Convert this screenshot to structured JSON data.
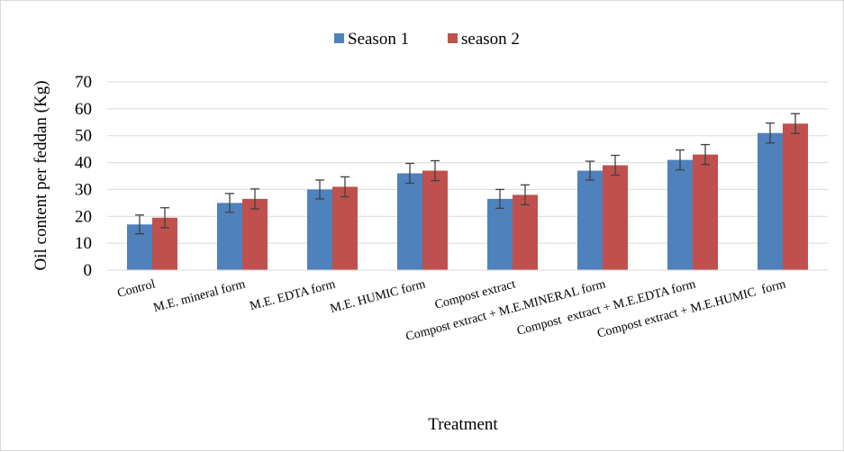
{
  "chart_data": {
    "type": "bar",
    "title": "",
    "xlabel": "Treatment",
    "ylabel": "Oil content per feddan (Kg)",
    "ylim": [
      0,
      70
    ],
    "yticks": [
      0,
      10,
      20,
      30,
      40,
      50,
      60,
      70
    ],
    "grid": true,
    "legend_position": "top",
    "categories": [
      "Control",
      "M.E. mineral form",
      "M.E. EDTA form",
      "M.E. HUMIC form",
      "Compost extract",
      "Compost extract + M.E.MINERAL form",
      "Compost  extract + M.E.EDTA form",
      "Compost extract + M.E.HUMIC  form"
    ],
    "series": [
      {
        "name": "Season 1",
        "color": "#4f81bd",
        "values": [
          17,
          25,
          30,
          36,
          26.5,
          37,
          41,
          51
        ],
        "errors": [
          3.5,
          3.5,
          3.5,
          3.7,
          3.5,
          3.5,
          3.7,
          3.7
        ]
      },
      {
        "name": "season 2",
        "color": "#c0504d",
        "values": [
          19.5,
          26.5,
          31,
          37,
          28,
          39,
          43,
          54.5
        ],
        "errors": [
          3.7,
          3.7,
          3.7,
          3.7,
          3.7,
          3.7,
          3.7,
          3.7
        ]
      }
    ]
  }
}
